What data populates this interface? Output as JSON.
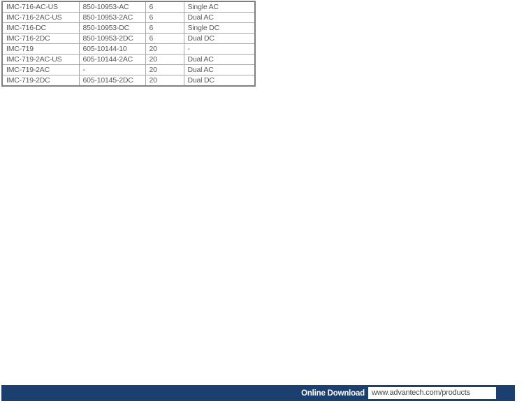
{
  "table": {
    "rows": [
      [
        "IMC-716-AC-US",
        "850-10953-AC",
        "6",
        "Single AC"
      ],
      [
        "IMC-716-2AC-US",
        "850-10953-2AC",
        "6",
        "Dual AC"
      ],
      [
        "IMC-716-DC",
        "850-10953-DC",
        "6",
        "Single DC"
      ],
      [
        "IMC-716-2DC",
        "850-10953-2DC",
        "6",
        "Dual DC"
      ],
      [
        "IMC-719",
        "605-10144-10",
        "20",
        "-"
      ],
      [
        "IMC-719-2AC-US",
        "605-10144-2AC",
        "20",
        "Dual AC"
      ],
      [
        "IMC-719-2AC",
        "-",
        "20",
        "Dual AC"
      ],
      [
        "IMC-719-2DC",
        "605-10145-2DC",
        "20",
        "Dual DC"
      ]
    ]
  },
  "footer": {
    "label": "Online Download",
    "url": "www.advantech.com/products"
  },
  "colors": {
    "footer_bar": "#1b3f6e",
    "footer_label_text": "#ffffff",
    "footer_url_text": "#4a4a4a",
    "table_text": "#595959",
    "table_outer_border": "#7f7f7f",
    "table_inner_border": "#a6a6a6",
    "page_background": "#ffffff"
  }
}
